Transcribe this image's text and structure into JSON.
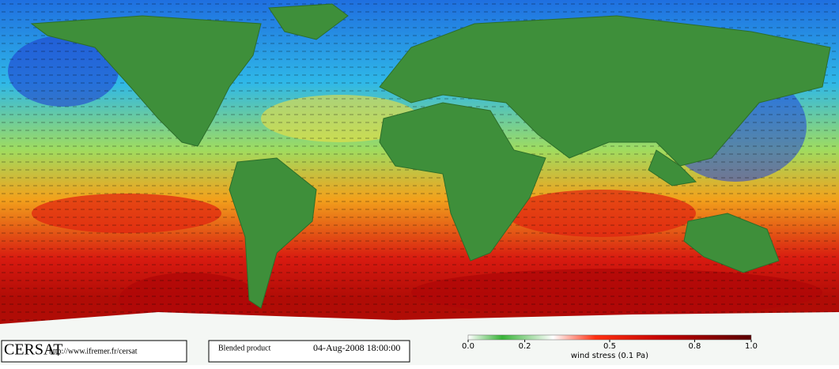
{
  "footer": {
    "logo": "CERSAT",
    "url": "http://www.ifremer.fr/cersat",
    "product": "Blended product",
    "date": "04-Aug-2008 18:00:00"
  },
  "colorbar": {
    "lim": [
      0,
      1
    ],
    "ticks": [
      {
        "value": 0,
        "label": "0.0"
      },
      0.2,
      0.5,
      0.8,
      {
        "value": 1,
        "label": "1.0"
      }
    ],
    "label": "wind stress (0.1 Pa)"
  }
}
